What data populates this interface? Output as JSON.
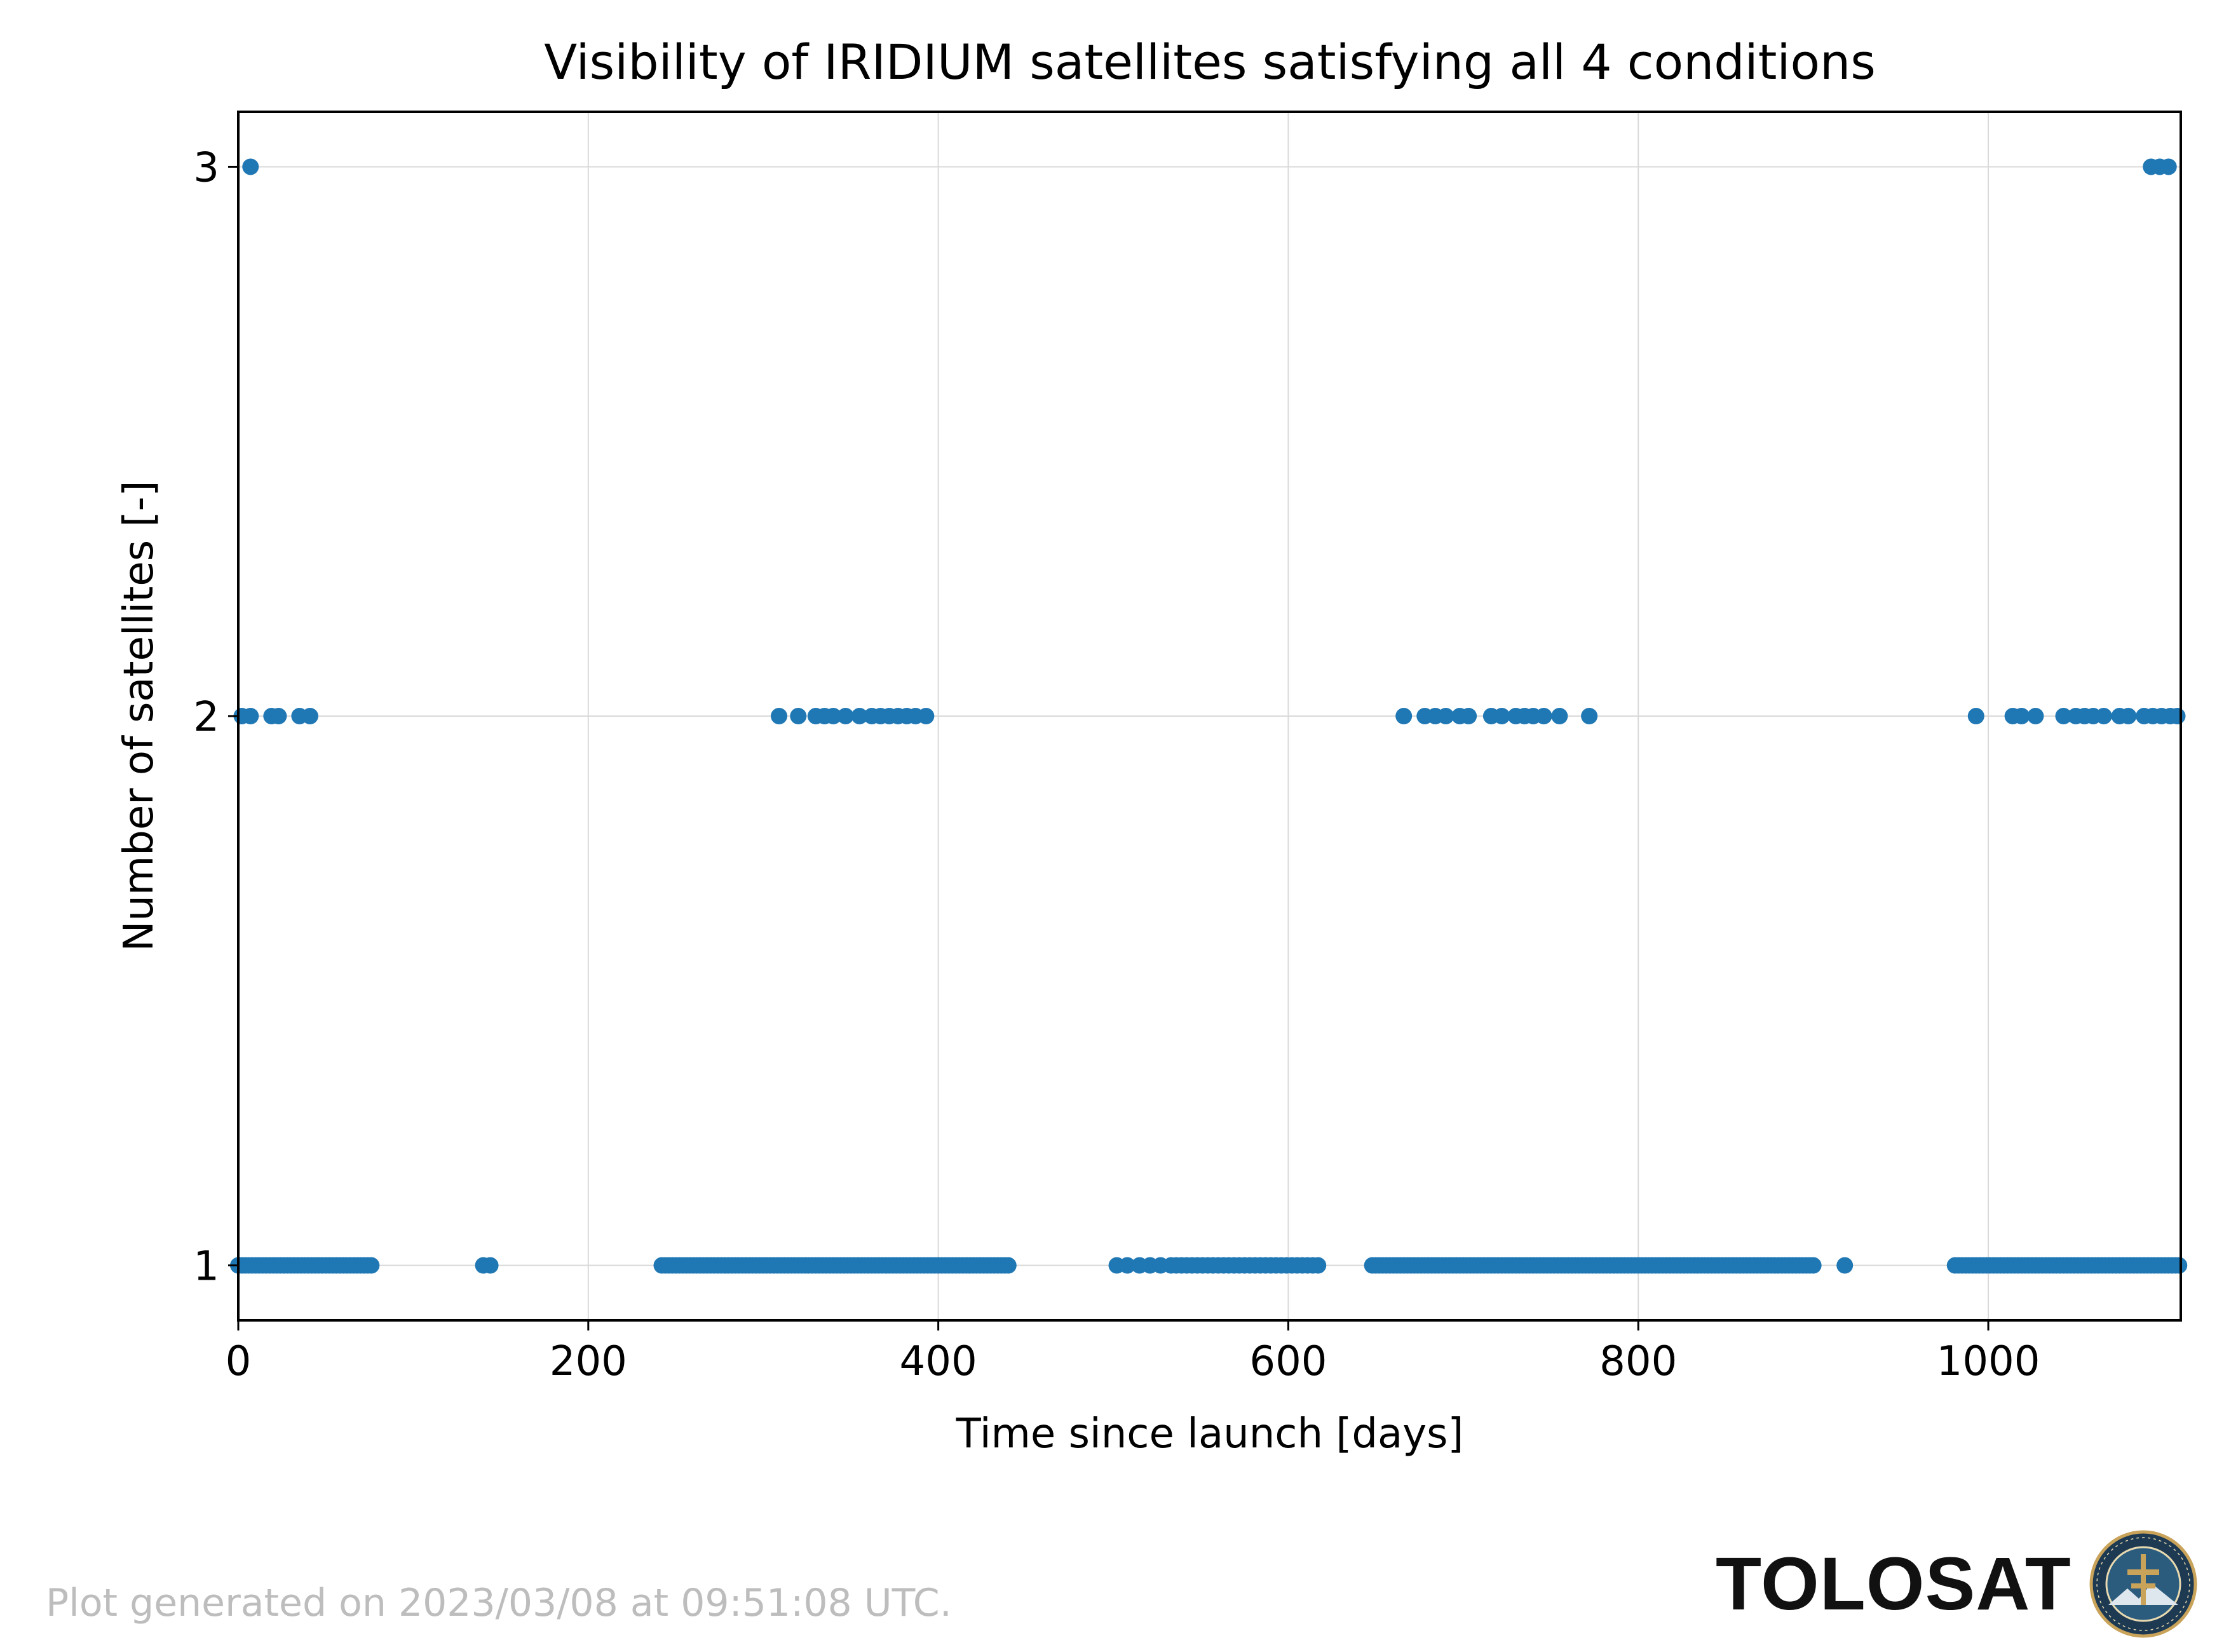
{
  "chart_data": {
    "type": "scatter",
    "title": "Visibility of IRIDIUM satellites satisfying all 4 conditions",
    "xlabel": "Time since launch [days]",
    "ylabel": "Number of satellites [-]",
    "xlim": [
      0,
      1110
    ],
    "ylim": [
      0.9,
      3.1
    ],
    "xticks": [
      0,
      200,
      400,
      600,
      800,
      1000
    ],
    "yticks": [
      1,
      2,
      3
    ],
    "grid": true,
    "marker_color": "#1f77b4",
    "points": [
      {
        "x": 7,
        "y": 3
      },
      {
        "x": 1093,
        "y": 3
      },
      {
        "x": 1098,
        "y": 3
      },
      {
        "x": 1103,
        "y": 3
      },
      {
        "x": 2,
        "y": 2
      },
      {
        "x": 7,
        "y": 2
      },
      {
        "x": 19,
        "y": 2
      },
      {
        "x": 23,
        "y": 2
      },
      {
        "x": 35,
        "y": 2
      },
      {
        "x": 41,
        "y": 2
      },
      {
        "x": 309,
        "y": 2
      },
      {
        "x": 320,
        "y": 2
      },
      {
        "x": 330,
        "y": 2
      },
      {
        "x": 335,
        "y": 2
      },
      {
        "x": 340,
        "y": 2
      },
      {
        "x": 347,
        "y": 2
      },
      {
        "x": 355,
        "y": 2
      },
      {
        "x": 362,
        "y": 2
      },
      {
        "x": 367,
        "y": 2
      },
      {
        "x": 372,
        "y": 2
      },
      {
        "x": 377,
        "y": 2
      },
      {
        "x": 382,
        "y": 2
      },
      {
        "x": 387,
        "y": 2
      },
      {
        "x": 393,
        "y": 2
      },
      {
        "x": 666,
        "y": 2
      },
      {
        "x": 678,
        "y": 2
      },
      {
        "x": 684,
        "y": 2
      },
      {
        "x": 690,
        "y": 2
      },
      {
        "x": 698,
        "y": 2
      },
      {
        "x": 703,
        "y": 2
      },
      {
        "x": 716,
        "y": 2
      },
      {
        "x": 722,
        "y": 2
      },
      {
        "x": 730,
        "y": 2
      },
      {
        "x": 735,
        "y": 2
      },
      {
        "x": 740,
        "y": 2
      },
      {
        "x": 746,
        "y": 2
      },
      {
        "x": 755,
        "y": 2
      },
      {
        "x": 772,
        "y": 2
      },
      {
        "x": 993,
        "y": 2
      },
      {
        "x": 1014,
        "y": 2
      },
      {
        "x": 1019,
        "y": 2
      },
      {
        "x": 1027,
        "y": 2
      },
      {
        "x": 1043,
        "y": 2
      },
      {
        "x": 1050,
        "y": 2
      },
      {
        "x": 1055,
        "y": 2
      },
      {
        "x": 1060,
        "y": 2
      },
      {
        "x": 1066,
        "y": 2
      },
      {
        "x": 1075,
        "y": 2
      },
      {
        "x": 1080,
        "y": 2
      },
      {
        "x": 1089,
        "y": 2
      },
      {
        "x": 1094,
        "y": 2
      },
      {
        "x": 1099,
        "y": 2
      },
      {
        "x": 1104,
        "y": 2
      },
      {
        "x": 1108,
        "y": 2
      },
      {
        "x": 140,
        "y": 1
      },
      {
        "x": 144,
        "y": 1
      },
      {
        "x": 502,
        "y": 1
      },
      {
        "x": 508,
        "y": 1
      },
      {
        "x": 515,
        "y": 1
      },
      {
        "x": 521,
        "y": 1
      },
      {
        "x": 527,
        "y": 1
      },
      {
        "x": 918,
        "y": 1
      }
    ],
    "point_runs": [
      {
        "y": 1,
        "x_start": 0,
        "x_end": 76,
        "step": 2
      },
      {
        "y": 1,
        "x_start": 242,
        "x_end": 440,
        "step": 2
      },
      {
        "y": 1,
        "x_start": 533,
        "x_end": 618,
        "step": 3
      },
      {
        "y": 1,
        "x_start": 648,
        "x_end": 900,
        "step": 2
      },
      {
        "y": 1,
        "x_start": 981,
        "x_end": 1110,
        "step": 2
      }
    ]
  },
  "footer": {
    "generated_note": "Plot generated on 2023/03/08 at 09:51:08 UTC.",
    "brand": "TOLOSAT"
  },
  "colors": {
    "grid": "#d9d9d9",
    "axis": "#000000",
    "seal_dark": "#1d3a52",
    "seal_gold": "#c9a35a"
  }
}
